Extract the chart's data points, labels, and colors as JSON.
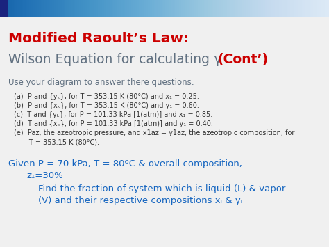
{
  "title_line1": "Modified Raoult’s Law:",
  "title_line2_gray": "Wilson Equation for calculating γ ",
  "title_line2_red": "(Cont’)",
  "subtitle": "Use your diagram to answer there questions:",
  "item_a": "(a)  P and {yₖ}, for T = 353.15 K (80°C) and x₁ = 0.25.",
  "item_b": "(b)  P and {xₖ}, for T = 353.15 K (80°C) and y₁ = 0.60.",
  "item_c": "(c)  T and {yₖ}, for P = 101.33 kPa [1(atm)] and x₁ = 0.85.",
  "item_d": "(d)  T and {xₖ}, for P = 101.33 kPa [1(atm)] and y₁ = 0.40.",
  "item_e1": "(e)  Paz, the azeotropic pressure, and x1az = y1az, the azeotropic composition, for",
  "item_e2": "       T = 353.15 K (80°C).",
  "blue1": "Given P = 70 kPa, T = 80ºC & overall composition,",
  "blue2": "    z₁=30%",
  "blue3": "        Find the fraction of system which is liquid (L) & vapor",
  "blue4": "        (V) and their respective compositions xᵢ & yᵢ",
  "bg_color": "#f0f0f0",
  "header_left_color": "#1a237e",
  "header_right_color": "#e8eaf6",
  "title1_color": "#cc0000",
  "title2_color": "#607080",
  "red_color": "#cc0000",
  "subtitle_color": "#607080",
  "item_color": "#333333",
  "blue_color": "#1565c0"
}
